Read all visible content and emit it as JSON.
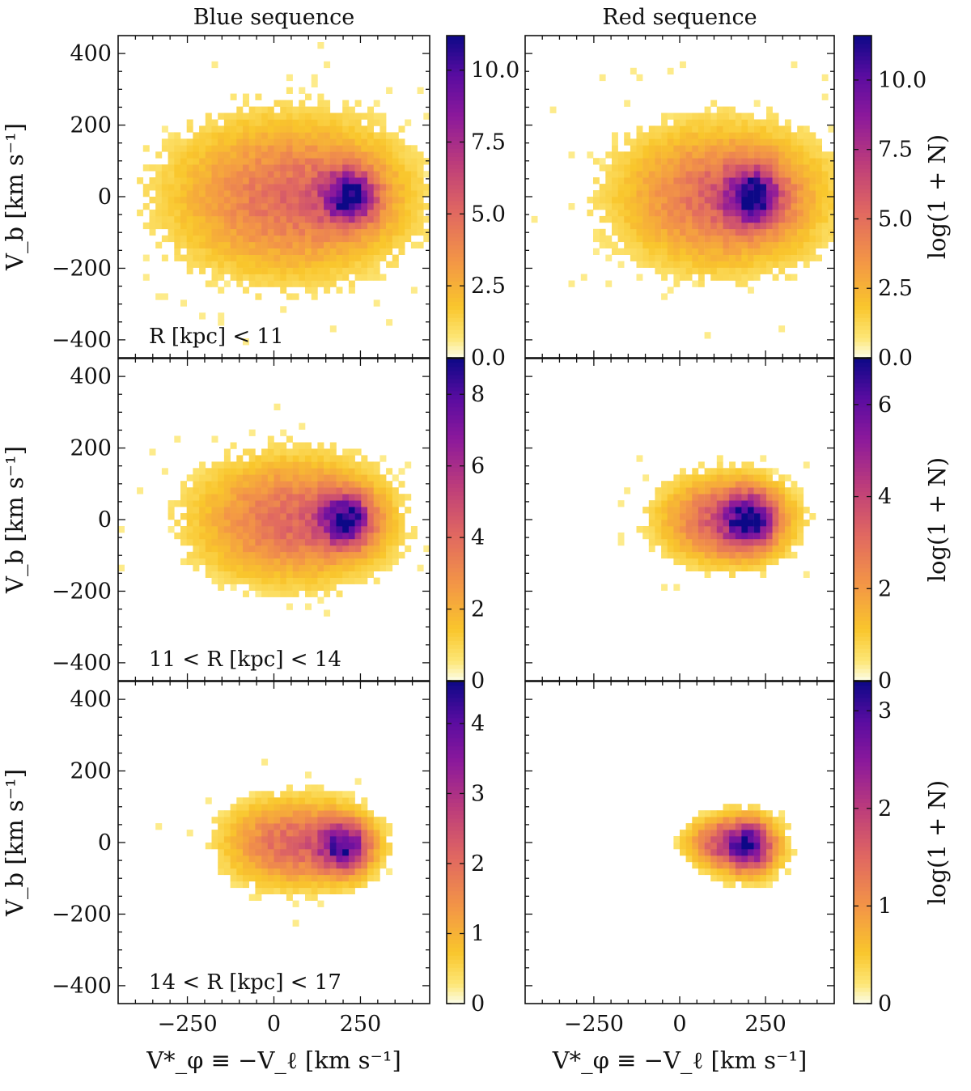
{
  "chart_data": {
    "type": "heatmap",
    "colormap": "plasma_r",
    "column_titles": [
      "Blue sequence",
      "Red sequence"
    ],
    "xlabel": "V*_φ ≡ −V_ℓ [km s⁻¹]",
    "ylabel": "V_b [km s⁻¹]",
    "colorbar_label": "log(1 + N)",
    "x_range": [
      -450,
      450
    ],
    "y_range": [
      -450,
      450
    ],
    "x_ticks": [
      -250,
      0,
      250
    ],
    "x_tick_labels": [
      "−250",
      "0",
      "250"
    ],
    "y_ticks": [
      -400,
      -200,
      0,
      200,
      400
    ],
    "y_tick_labels": [
      "−400",
      "−200",
      "0",
      "200",
      "400"
    ],
    "rows": [
      {
        "annotation": "R [kpc] < 11",
        "panels": [
          {
            "sequence": "Blue sequence",
            "peak_x": 220,
            "peak_y": 0,
            "max": 11.2,
            "cbar_ticks": [
              0,
              2.5,
              5,
              7.5,
              10
            ],
            "cbar_tick_labels": [
              "0.0",
              "2.5",
              "5.0",
              "7.5",
              "10.0"
            ]
          },
          {
            "sequence": "Red sequence",
            "peak_x": 215,
            "peak_y": 0,
            "max": 11.6,
            "cbar_ticks": [
              0,
              2.5,
              5,
              7.5,
              10
            ],
            "cbar_tick_labels": [
              "0.0",
              "2.5",
              "5.0",
              "7.5",
              "10.0"
            ]
          }
        ]
      },
      {
        "annotation": "11 < R [kpc] < 14",
        "panels": [
          {
            "sequence": "Blue sequence",
            "peak_x": 210,
            "peak_y": 0,
            "max": 9.0,
            "cbar_ticks": [
              0,
              2,
              4,
              6,
              8
            ],
            "cbar_tick_labels": [
              "0",
              "2",
              "4",
              "6",
              "8"
            ]
          },
          {
            "sequence": "Red sequence",
            "peak_x": 205,
            "peak_y": 0,
            "max": 7.0,
            "cbar_ticks": [
              0,
              2,
              4,
              6
            ],
            "cbar_tick_labels": [
              "0",
              "2",
              "4",
              "6"
            ]
          }
        ]
      },
      {
        "annotation": "14 < R [kpc] < 17",
        "panels": [
          {
            "sequence": "Blue sequence",
            "peak_x": 205,
            "peak_y": -10,
            "max": 4.6,
            "cbar_ticks": [
              0,
              1,
              2,
              3,
              4
            ],
            "cbar_tick_labels": [
              "0",
              "1",
              "2",
              "3",
              "4"
            ]
          },
          {
            "sequence": "Red sequence",
            "peak_x": 205,
            "peak_y": -10,
            "max": 3.3,
            "cbar_ticks": [
              0,
              1,
              2,
              3
            ],
            "cbar_tick_labels": [
              "0",
              "1",
              "2",
              "3"
            ]
          }
        ]
      }
    ]
  }
}
